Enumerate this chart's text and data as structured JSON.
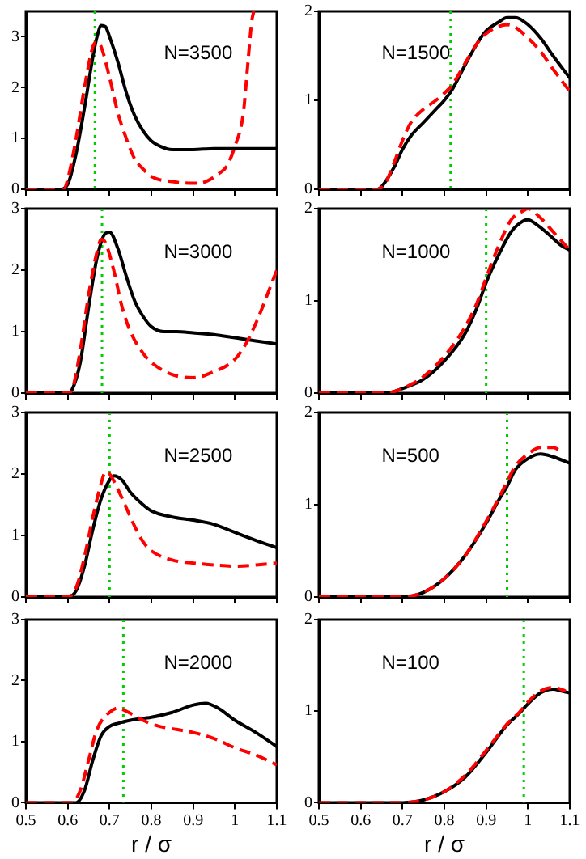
{
  "chart_data": [
    {
      "type": "line",
      "xlim": [
        0.5,
        1.1
      ],
      "xticks": [
        0.5,
        0.6,
        0.7,
        0.8,
        0.9,
        1,
        1.1
      ],
      "ylim": [
        0,
        3.5
      ],
      "yticks": [
        0,
        1,
        2,
        3
      ],
      "grid": false,
      "tick_labels": "y",
      "annotations": [
        "N=3500"
      ],
      "ref_lines": [
        {
          "axis": "x",
          "value": 0.665,
          "color": "#00cc00",
          "line_style": "dotted"
        }
      ],
      "series": [
        {
          "color": "#000000",
          "line_style": "solid",
          "x": [
            0.5,
            0.58,
            0.6,
            0.62,
            0.64,
            0.66,
            0.67,
            0.68,
            0.69,
            0.7,
            0.72,
            0.74,
            0.76,
            0.78,
            0.8,
            0.82,
            0.85,
            0.9,
            0.95,
            1.0,
            1.05,
            1.1
          ],
          "values": [
            0,
            0,
            0.1,
            0.7,
            1.6,
            2.6,
            3.0,
            3.22,
            3.2,
            3.0,
            2.5,
            1.9,
            1.45,
            1.15,
            0.95,
            0.85,
            0.78,
            0.78,
            0.8,
            0.8,
            0.8,
            0.8
          ]
        },
        {
          "color": "#ff0000",
          "line_style": "dashed",
          "x": [
            0.5,
            0.59,
            0.6,
            0.62,
            0.64,
            0.66,
            0.67,
            0.68,
            0.7,
            0.72,
            0.74,
            0.76,
            0.78,
            0.8,
            0.85,
            0.9,
            0.93,
            0.96,
            0.98,
            1.0,
            1.02,
            1.03,
            1.04,
            1.045
          ],
          "values": [
            0,
            0,
            0.2,
            1.0,
            2.0,
            2.8,
            2.9,
            2.8,
            2.2,
            1.5,
            1.0,
            0.6,
            0.4,
            0.25,
            0.15,
            0.12,
            0.15,
            0.3,
            0.45,
            0.85,
            1.5,
            2.4,
            3.3,
            3.5
          ]
        }
      ]
    },
    {
      "type": "line",
      "xlim": [
        0.5,
        1.1
      ],
      "xticks": [
        0.5,
        0.6,
        0.7,
        0.8,
        0.9,
        1,
        1.1
      ],
      "ylim": [
        0,
        2
      ],
      "yticks": [
        0,
        1,
        2
      ],
      "grid": false,
      "tick_labels": "y",
      "annotations": [
        "N=1500"
      ],
      "ref_lines": [
        {
          "axis": "x",
          "value": 0.815,
          "color": "#00cc00",
          "line_style": "dotted"
        }
      ],
      "series": [
        {
          "color": "#000000",
          "line_style": "solid",
          "x": [
            0.5,
            0.64,
            0.65,
            0.68,
            0.7,
            0.72,
            0.75,
            0.78,
            0.8,
            0.82,
            0.85,
            0.88,
            0.9,
            0.93,
            0.95,
            0.97,
            1.0,
            1.03,
            1.06,
            1.1
          ],
          "values": [
            0,
            0,
            0.03,
            0.25,
            0.45,
            0.6,
            0.75,
            0.9,
            1.0,
            1.13,
            1.4,
            1.65,
            1.78,
            1.88,
            1.93,
            1.93,
            1.85,
            1.7,
            1.5,
            1.25
          ]
        },
        {
          "color": "#ff0000",
          "line_style": "dashed",
          "x": [
            0.5,
            0.64,
            0.66,
            0.68,
            0.7,
            0.72,
            0.75,
            0.78,
            0.8,
            0.82,
            0.85,
            0.88,
            0.9,
            0.93,
            0.95,
            0.97,
            1.0,
            1.03,
            1.06,
            1.1
          ],
          "values": [
            0,
            0,
            0.08,
            0.3,
            0.55,
            0.75,
            0.9,
            1.0,
            1.08,
            1.18,
            1.42,
            1.65,
            1.75,
            1.83,
            1.85,
            1.82,
            1.7,
            1.55,
            1.35,
            1.1
          ]
        }
      ]
    },
    {
      "type": "line",
      "xlim": [
        0.5,
        1.1
      ],
      "xticks": [
        0.5,
        0.6,
        0.7,
        0.8,
        0.9,
        1,
        1.1
      ],
      "ylim": [
        0,
        3
      ],
      "yticks": [
        0,
        1,
        2,
        3
      ],
      "grid": false,
      "tick_labels": "y",
      "annotations": [
        "N=3000"
      ],
      "ref_lines": [
        {
          "axis": "x",
          "value": 0.682,
          "color": "#00cc00",
          "line_style": "dotted"
        }
      ],
      "series": [
        {
          "color": "#000000",
          "line_style": "solid",
          "x": [
            0.5,
            0.6,
            0.61,
            0.63,
            0.65,
            0.67,
            0.69,
            0.7,
            0.72,
            0.74,
            0.76,
            0.78,
            0.8,
            0.83,
            0.86,
            0.9,
            0.95,
            1.0,
            1.05,
            1.1
          ],
          "values": [
            0,
            0,
            0.05,
            0.5,
            1.4,
            2.2,
            2.6,
            2.62,
            2.35,
            1.9,
            1.5,
            1.25,
            1.08,
            1.0,
            1.0,
            0.98,
            0.95,
            0.9,
            0.85,
            0.8
          ]
        },
        {
          "color": "#ff0000",
          "line_style": "dashed",
          "x": [
            0.5,
            0.6,
            0.61,
            0.63,
            0.65,
            0.67,
            0.68,
            0.69,
            0.71,
            0.73,
            0.75,
            0.78,
            0.8,
            0.85,
            0.9,
            0.95,
            1.0,
            1.03,
            1.06,
            1.08,
            1.1
          ],
          "values": [
            0,
            0,
            0.05,
            0.7,
            1.6,
            2.3,
            2.5,
            2.45,
            2.0,
            1.4,
            1.0,
            0.65,
            0.5,
            0.3,
            0.25,
            0.35,
            0.55,
            0.85,
            1.3,
            1.65,
            2.0
          ]
        }
      ]
    },
    {
      "type": "line",
      "xlim": [
        0.5,
        1.1
      ],
      "xticks": [
        0.5,
        0.6,
        0.7,
        0.8,
        0.9,
        1,
        1.1
      ],
      "ylim": [
        0,
        2
      ],
      "yticks": [
        0,
        1,
        2
      ],
      "grid": false,
      "tick_labels": "y",
      "annotations": [
        "N=1000"
      ],
      "ref_lines": [
        {
          "axis": "x",
          "value": 0.9,
          "color": "#00cc00",
          "line_style": "dotted"
        }
      ],
      "series": [
        {
          "color": "#000000",
          "line_style": "solid",
          "x": [
            0.5,
            0.66,
            0.7,
            0.75,
            0.8,
            0.85,
            0.88,
            0.9,
            0.93,
            0.96,
            0.99,
            1.0,
            1.02,
            1.05,
            1.08,
            1.1
          ],
          "values": [
            0,
            0,
            0.05,
            0.15,
            0.35,
            0.65,
            0.95,
            1.2,
            1.5,
            1.75,
            1.87,
            1.88,
            1.83,
            1.72,
            1.6,
            1.55
          ]
        },
        {
          "color": "#ff0000",
          "line_style": "dashed",
          "x": [
            0.5,
            0.66,
            0.7,
            0.75,
            0.8,
            0.85,
            0.88,
            0.9,
            0.93,
            0.96,
            0.99,
            1.0,
            1.03,
            1.06,
            1.08,
            1.1
          ],
          "values": [
            0,
            0,
            0.05,
            0.18,
            0.4,
            0.72,
            1.0,
            1.25,
            1.6,
            1.88,
            1.98,
            2.0,
            1.9,
            1.75,
            1.65,
            1.55
          ]
        }
      ]
    },
    {
      "type": "line",
      "xlim": [
        0.5,
        1.1
      ],
      "xticks": [
        0.5,
        0.6,
        0.7,
        0.8,
        0.9,
        1,
        1.1
      ],
      "ylim": [
        0,
        3
      ],
      "yticks": [
        0,
        1,
        2,
        3
      ],
      "grid": false,
      "tick_labels": "y",
      "annotations": [
        "N=2500"
      ],
      "ref_lines": [
        {
          "axis": "x",
          "value": 0.7,
          "color": "#00cc00",
          "line_style": "dotted"
        }
      ],
      "series": [
        {
          "color": "#000000",
          "line_style": "solid",
          "x": [
            0.5,
            0.6,
            0.62,
            0.64,
            0.66,
            0.68,
            0.7,
            0.71,
            0.73,
            0.75,
            0.78,
            0.8,
            0.85,
            0.9,
            0.95,
            1.0,
            1.05,
            1.1
          ],
          "values": [
            0,
            0,
            0.1,
            0.5,
            1.1,
            1.6,
            1.9,
            1.97,
            1.9,
            1.7,
            1.5,
            1.4,
            1.3,
            1.25,
            1.18,
            1.05,
            0.92,
            0.8
          ]
        },
        {
          "color": "#ff0000",
          "line_style": "dashed",
          "x": [
            0.5,
            0.6,
            0.62,
            0.64,
            0.66,
            0.68,
            0.69,
            0.7,
            0.72,
            0.74,
            0.76,
            0.78,
            0.8,
            0.85,
            0.9,
            0.95,
            1.0,
            1.05,
            1.1
          ],
          "values": [
            0,
            0,
            0.15,
            0.65,
            1.3,
            1.85,
            2.03,
            2.0,
            1.75,
            1.45,
            1.15,
            0.9,
            0.75,
            0.6,
            0.55,
            0.52,
            0.5,
            0.52,
            0.55
          ]
        }
      ]
    },
    {
      "type": "line",
      "xlim": [
        0.5,
        1.1
      ],
      "xticks": [
        0.5,
        0.6,
        0.7,
        0.8,
        0.9,
        1,
        1.1
      ],
      "ylim": [
        0,
        2
      ],
      "yticks": [
        0,
        1,
        2
      ],
      "grid": false,
      "tick_labels": "y",
      "annotations": [
        "N=500"
      ],
      "ref_lines": [
        {
          "axis": "x",
          "value": 0.95,
          "color": "#00cc00",
          "line_style": "dotted"
        }
      ],
      "series": [
        {
          "color": "#000000",
          "line_style": "solid",
          "x": [
            0.5,
            0.7,
            0.75,
            0.8,
            0.85,
            0.9,
            0.93,
            0.95,
            0.97,
            1.0,
            1.03,
            1.06,
            1.1
          ],
          "values": [
            0,
            0,
            0.05,
            0.2,
            0.45,
            0.8,
            1.05,
            1.2,
            1.38,
            1.5,
            1.55,
            1.52,
            1.45
          ]
        },
        {
          "color": "#ff0000",
          "line_style": "dashed",
          "x": [
            0.5,
            0.7,
            0.75,
            0.8,
            0.85,
            0.9,
            0.93,
            0.95,
            0.97,
            1.0,
            1.03,
            1.06,
            1.08
          ],
          "values": [
            0,
            0,
            0.05,
            0.2,
            0.45,
            0.82,
            1.07,
            1.25,
            1.42,
            1.55,
            1.62,
            1.62,
            1.58
          ]
        }
      ]
    },
    {
      "type": "line",
      "xlim": [
        0.5,
        1.1
      ],
      "xticks": [
        0.5,
        0.6,
        0.7,
        0.8,
        0.9,
        1,
        1.1
      ],
      "ylim": [
        0,
        3
      ],
      "yticks": [
        0,
        1,
        2,
        3
      ],
      "grid": false,
      "xlabel": "r / σ",
      "annotations": [
        "N=2000"
      ],
      "ref_lines": [
        {
          "axis": "x",
          "value": 0.733,
          "color": "#00cc00",
          "line_style": "dotted"
        }
      ],
      "series": [
        {
          "color": "#000000",
          "line_style": "solid",
          "x": [
            0.5,
            0.62,
            0.64,
            0.66,
            0.68,
            0.7,
            0.72,
            0.75,
            0.8,
            0.85,
            0.9,
            0.93,
            0.96,
            1.0,
            1.05,
            1.1
          ],
          "values": [
            0,
            0,
            0.2,
            0.7,
            1.1,
            1.25,
            1.3,
            1.35,
            1.4,
            1.48,
            1.6,
            1.63,
            1.55,
            1.35,
            1.15,
            0.92
          ]
        },
        {
          "color": "#ff0000",
          "line_style": "dashed",
          "x": [
            0.5,
            0.61,
            0.63,
            0.65,
            0.67,
            0.7,
            0.72,
            0.74,
            0.78,
            0.82,
            0.86,
            0.9,
            0.95,
            1.0,
            1.05,
            1.1
          ],
          "values": [
            0,
            0,
            0.2,
            0.7,
            1.2,
            1.48,
            1.55,
            1.5,
            1.35,
            1.25,
            1.2,
            1.15,
            1.05,
            0.9,
            0.78,
            0.62
          ]
        }
      ]
    },
    {
      "type": "line",
      "xlim": [
        0.5,
        1.1
      ],
      "xticks": [
        0.5,
        0.6,
        0.7,
        0.8,
        0.9,
        1,
        1.1
      ],
      "ylim": [
        0,
        2
      ],
      "yticks": [
        0,
        1,
        2
      ],
      "grid": false,
      "xlabel": "r / σ",
      "annotations": [
        "N=100"
      ],
      "ref_lines": [
        {
          "axis": "x",
          "value": 0.99,
          "color": "#00cc00",
          "line_style": "dotted"
        }
      ],
      "series": [
        {
          "color": "#000000",
          "line_style": "solid",
          "x": [
            0.5,
            0.7,
            0.75,
            0.8,
            0.85,
            0.9,
            0.95,
            0.98,
            1.0,
            1.03,
            1.06,
            1.08,
            1.1
          ],
          "values": [
            0,
            0,
            0.03,
            0.12,
            0.28,
            0.55,
            0.85,
            0.98,
            1.08,
            1.2,
            1.24,
            1.22,
            1.2
          ]
        },
        {
          "color": "#ff0000",
          "line_style": "dashed",
          "x": [
            0.5,
            0.7,
            0.75,
            0.8,
            0.85,
            0.9,
            0.95,
            0.98,
            1.0,
            1.03,
            1.06,
            1.09
          ],
          "values": [
            0,
            0,
            0.03,
            0.12,
            0.3,
            0.57,
            0.86,
            0.99,
            1.1,
            1.22,
            1.26,
            1.22
          ]
        }
      ]
    }
  ]
}
